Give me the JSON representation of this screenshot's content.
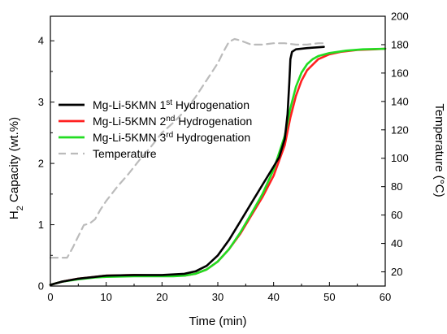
{
  "chart_data": {
    "type": "line",
    "xlabel": "Time (min)",
    "ylabel": {
      "main": "H",
      "sub": "2",
      "rest": " Capacity (wt.%)"
    },
    "y2label": "Temperature (°C)",
    "xlim": [
      0,
      60
    ],
    "ylim": [
      0,
      4.4
    ],
    "y2lim": [
      10,
      200
    ],
    "xticks": [
      "0",
      "10",
      "20",
      "30",
      "40",
      "50",
      "60"
    ],
    "yticks": [
      "0",
      "1",
      "2",
      "3",
      "4"
    ],
    "y2ticks": [
      "20",
      "40",
      "60",
      "80",
      "100",
      "120",
      "140",
      "160",
      "180",
      "200"
    ],
    "grid": false,
    "legend": "upper-left",
    "series": [
      {
        "name": "Mg-Li-5KMN 1st Hydrogenation",
        "label": {
          "base": "Mg-Li-5KMN 1",
          "sup": "st",
          "rest": " Hydrogenation"
        },
        "color": "#000000",
        "axis": "left",
        "dash": false,
        "x": [
          0,
          2,
          5,
          8,
          10,
          15,
          20,
          22,
          24,
          26,
          28,
          30,
          32,
          34,
          36,
          38,
          40,
          41,
          42,
          42.5,
          42.8,
          43,
          43.3,
          44,
          46,
          49
        ],
        "y": [
          0.02,
          0.07,
          0.12,
          0.15,
          0.17,
          0.18,
          0.18,
          0.19,
          0.2,
          0.24,
          0.33,
          0.5,
          0.75,
          1.05,
          1.35,
          1.65,
          1.95,
          2.1,
          2.4,
          2.8,
          3.3,
          3.7,
          3.82,
          3.86,
          3.88,
          3.9
        ]
      },
      {
        "name": "Mg-Li-5KMN 2nd Hydrogenation",
        "label": {
          "base": "Mg-Li-5KMN 2",
          "sup": "nd",
          "rest": " Hydrogenation"
        },
        "color": "#ff2020",
        "axis": "left",
        "dash": false,
        "x": [
          0,
          2,
          5,
          8,
          10,
          15,
          20,
          22,
          24,
          26,
          28,
          30,
          32,
          34,
          36,
          38,
          40,
          42,
          43,
          44,
          45,
          46,
          48,
          50,
          52,
          55,
          58,
          60
        ],
        "y": [
          0.02,
          0.07,
          0.12,
          0.15,
          0.17,
          0.18,
          0.17,
          0.17,
          0.17,
          0.2,
          0.27,
          0.4,
          0.6,
          0.85,
          1.15,
          1.45,
          1.8,
          2.3,
          2.75,
          3.1,
          3.35,
          3.52,
          3.7,
          3.78,
          3.82,
          3.85,
          3.86,
          3.87
        ]
      },
      {
        "name": "Mg-Li-5KMN 3rd Hydrogenation",
        "label": {
          "base": "Mg-Li-5KMN 3",
          "sup": "rd",
          "rest": " Hydrogenation"
        },
        "color": "#22dd22",
        "axis": "left",
        "dash": false,
        "x": [
          0,
          2,
          5,
          8,
          10,
          15,
          20,
          22,
          24,
          26,
          28,
          30,
          32,
          34,
          36,
          38,
          40,
          42,
          43,
          44,
          45,
          46,
          47,
          48,
          50,
          53,
          56,
          60
        ],
        "y": [
          0.02,
          0.07,
          0.11,
          0.14,
          0.15,
          0.16,
          0.16,
          0.16,
          0.17,
          0.2,
          0.27,
          0.4,
          0.6,
          0.87,
          1.18,
          1.5,
          1.9,
          2.45,
          2.9,
          3.25,
          3.48,
          3.62,
          3.7,
          3.75,
          3.8,
          3.84,
          3.86,
          3.87
        ]
      },
      {
        "name": "Temperature",
        "label": {
          "base": "Temperature",
          "sup": "",
          "rest": ""
        },
        "color": "#bbbbbb",
        "axis": "right",
        "dash": true,
        "x": [
          0,
          1,
          2,
          3,
          4,
          5,
          6,
          7,
          8,
          9,
          10,
          12,
          14,
          16,
          18,
          20,
          22,
          24,
          26,
          28,
          30,
          31,
          32,
          33,
          34,
          36,
          38,
          40,
          42,
          44,
          46,
          48,
          49
        ],
        "y": [
          30,
          30,
          30,
          30,
          37,
          45,
          53,
          54,
          57,
          64,
          70,
          80,
          89,
          99,
          108,
          118,
          125,
          133,
          143,
          155,
          167,
          175,
          182,
          184,
          183,
          180,
          180,
          181,
          181,
          180,
          180,
          181,
          181
        ]
      }
    ]
  }
}
